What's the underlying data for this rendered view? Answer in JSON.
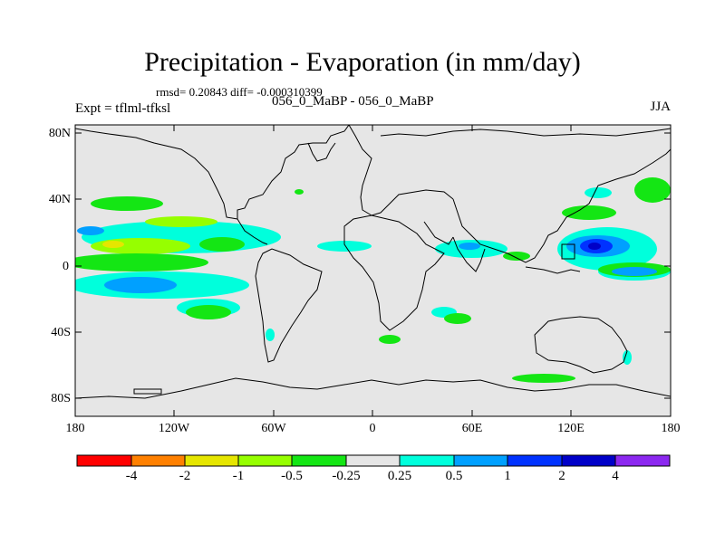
{
  "title": "Precipitation - Evaporation (in mm/day)",
  "stats": "rmsd= 0.20843 diff= -0.000310399",
  "experiment": "Expt = tflml-tfksl",
  "cases": "056_0_MaBP - 056_0_MaBP",
  "season": "JJA",
  "map": {
    "projection": "cylindrical equidistant",
    "lon_range": [
      -180,
      180
    ],
    "lat_range": [
      -90,
      90
    ],
    "land_color": "#e6e6e6",
    "lat_ticks": [
      {
        "value": 80,
        "label": "80N"
      },
      {
        "value": 40,
        "label": "40N"
      },
      {
        "value": 0,
        "label": "0"
      },
      {
        "value": -40,
        "label": "40S"
      },
      {
        "value": -80,
        "label": "80S"
      }
    ],
    "lon_ticks": [
      {
        "value": -180,
        "label": "180"
      },
      {
        "value": -120,
        "label": "120W"
      },
      {
        "value": -60,
        "label": "60W"
      },
      {
        "value": 0,
        "label": "0"
      },
      {
        "value": 60,
        "label": "60E"
      },
      {
        "value": 120,
        "label": "120E"
      },
      {
        "value": 180,
        "label": "180"
      }
    ]
  },
  "colorbar": {
    "colors": [
      "#ff0000",
      "#ff8000",
      "#e6e600",
      "#96ff00",
      "#14e614",
      "#e6e6e6",
      "#00ffdc",
      "#00a0ff",
      "#0032ff",
      "#0000c8",
      "#8c28f0"
    ],
    "labels": [
      "-4",
      "-2",
      "-1",
      "-0.5",
      "-0.25",
      "0.25",
      "0.5",
      "1",
      "2",
      "4"
    ]
  }
}
